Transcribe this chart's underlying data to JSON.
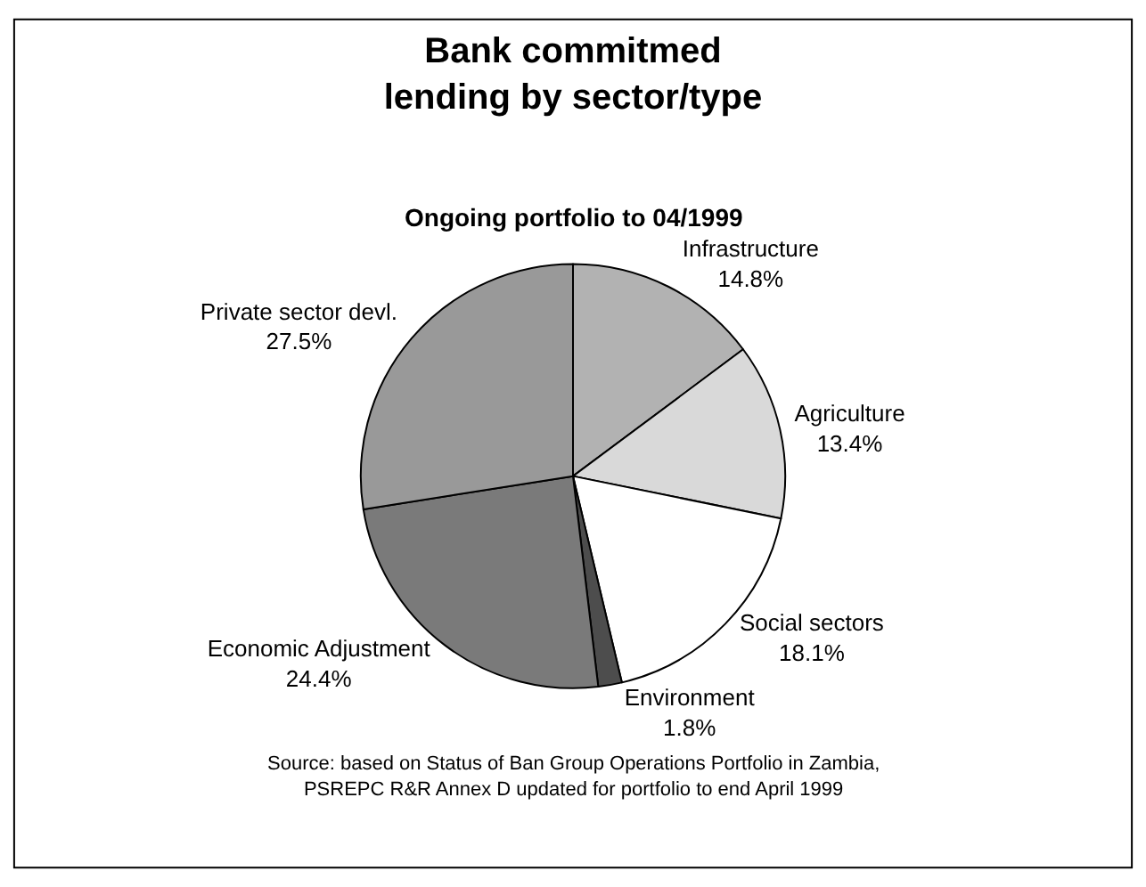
{
  "chart_data": {
    "type": "pie",
    "title": "Bank commitmed lending by sector/type",
    "subtitle": "Ongoing portfolio to 04/1999",
    "categories": [
      "Infrastructure",
      "Agriculture",
      "Social sectors",
      "Environment",
      "Economic Adjustment",
      "Private sector devl."
    ],
    "values": [
      14.8,
      13.4,
      18.1,
      1.8,
      24.4,
      27.5
    ],
    "colors": [
      "#b2b2b2",
      "#d9d9d9",
      "#ffffff",
      "#4d4d4d",
      "#7a7a7a",
      "#999999"
    ],
    "value_labels": [
      "14.8%",
      "13.4%",
      "18.1%",
      "1.8%",
      "24.4%",
      "27.5%"
    ],
    "legend": false,
    "annotations": [
      "Source: based on Status of Ban Group Operations Portfolio in Zambia, PSREPC R&R Annex D updated for portfolio to end April 1999"
    ]
  }
}
